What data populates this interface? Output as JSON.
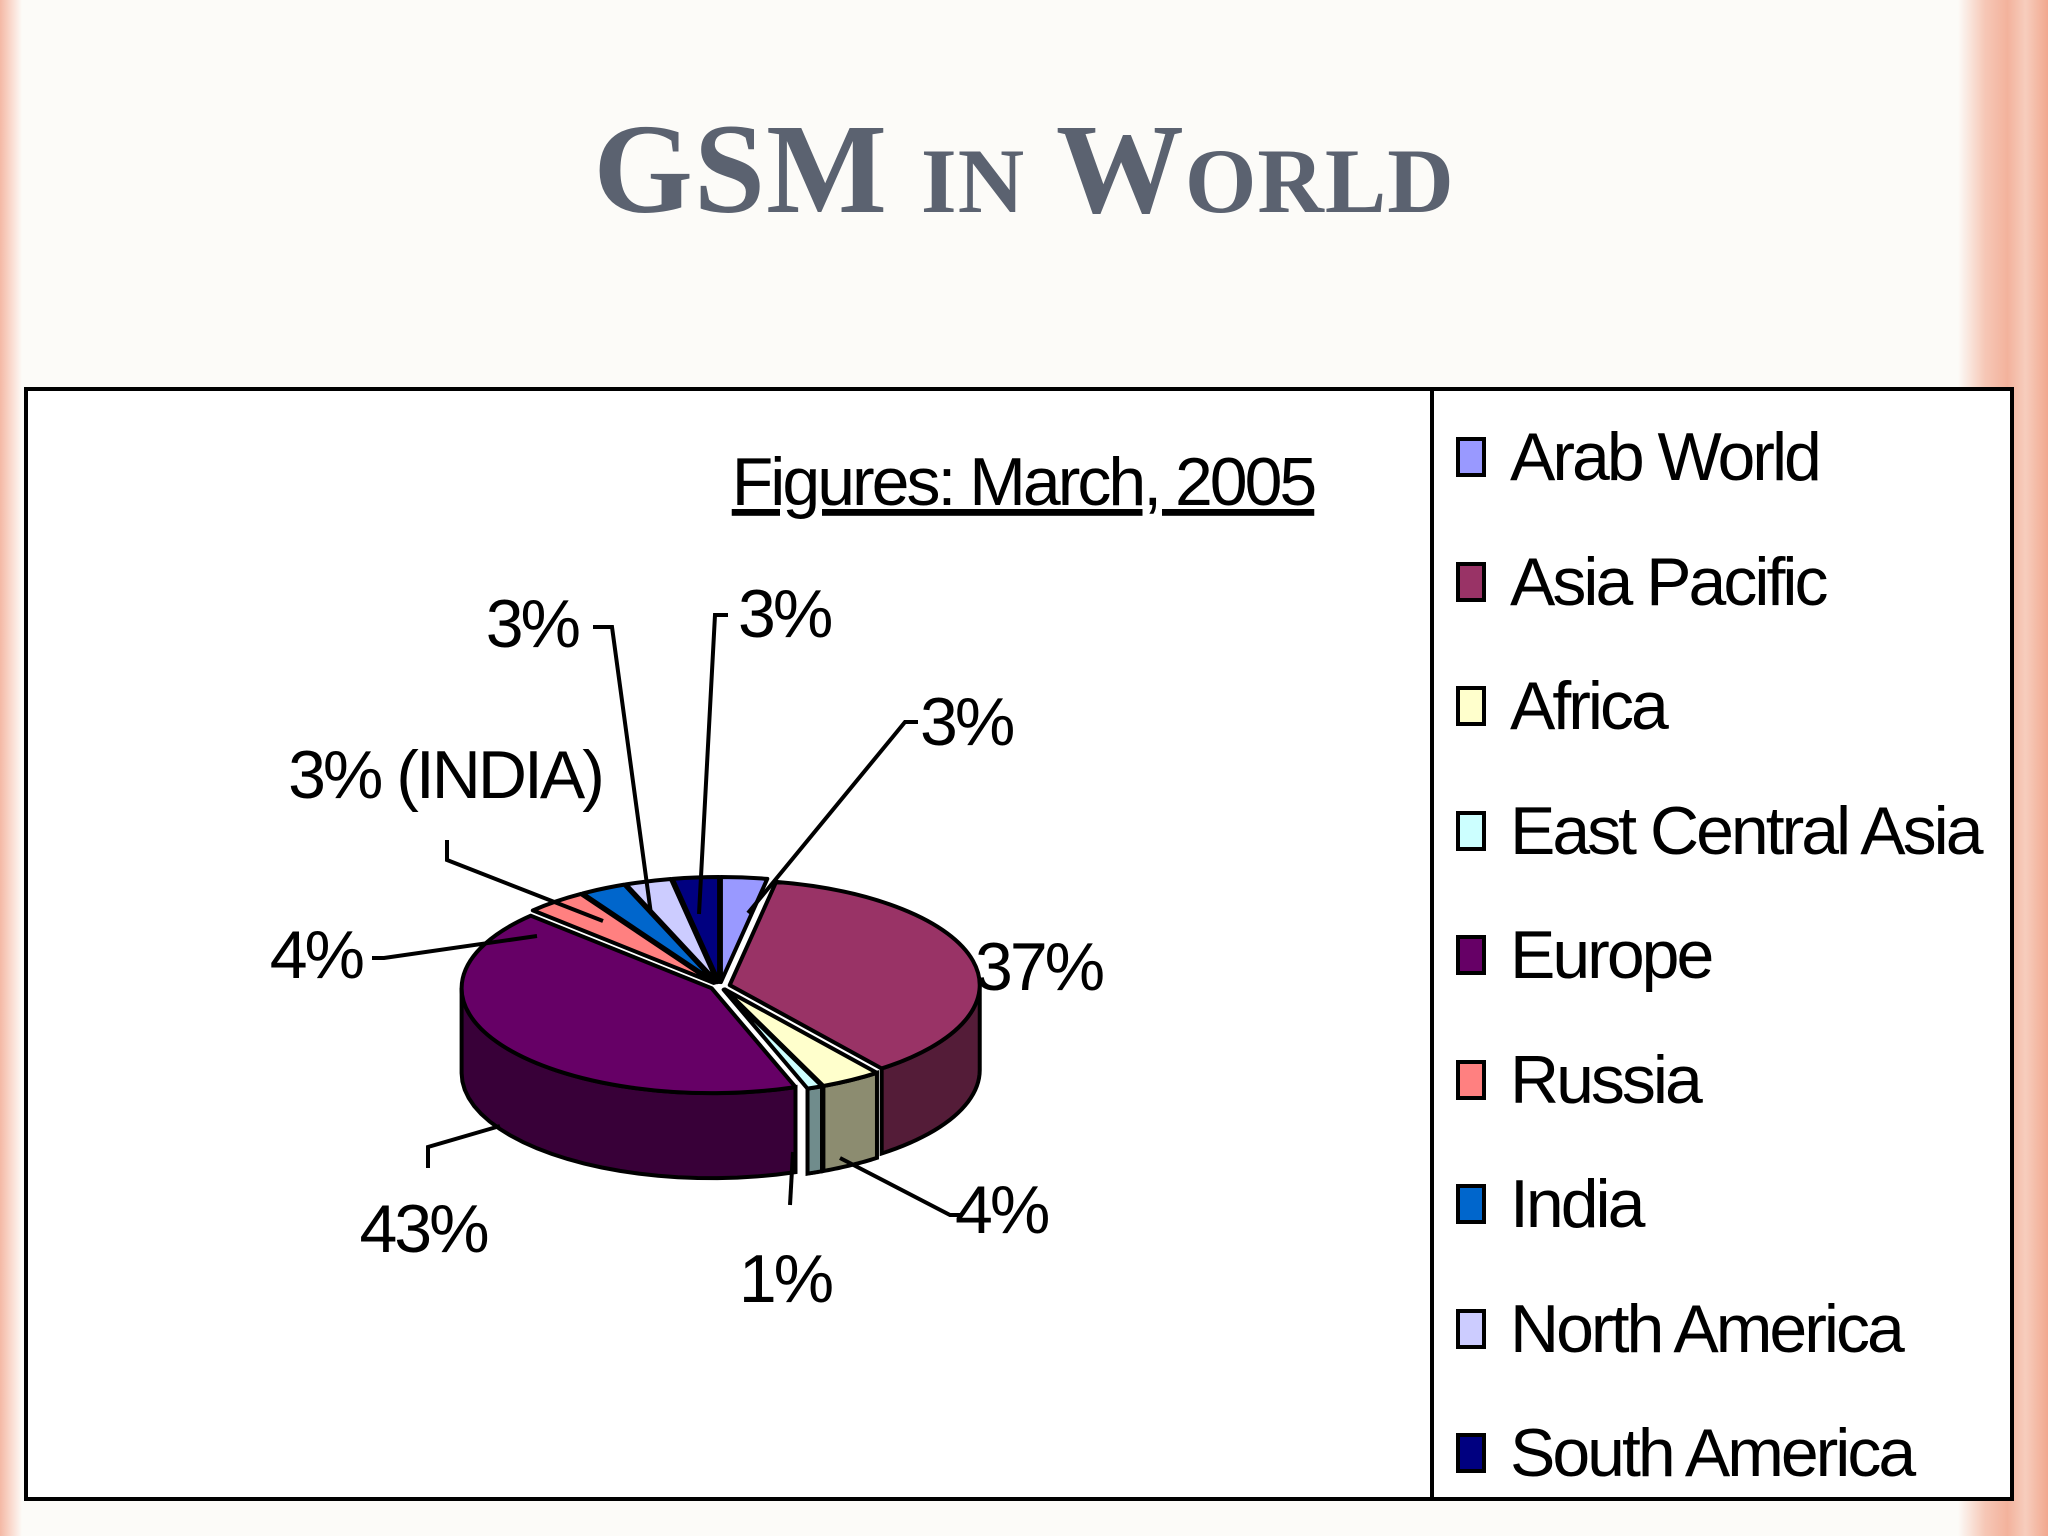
{
  "slide": {
    "title_parts": [
      "GSM ",
      "IN",
      " W",
      "ORLD"
    ]
  },
  "chart_data": {
    "type": "pie",
    "style": "3d-exploded-pie",
    "subtitle": "Figures: March, 2005",
    "legend_position": "right",
    "slices": [
      {
        "name": "Arab World",
        "value": 3,
        "label": "3%",
        "color": "#9999ff"
      },
      {
        "name": "Asia Pacific",
        "value": 37,
        "label": "37%",
        "color": "#993366"
      },
      {
        "name": "Africa",
        "value": 4,
        "label": "4%",
        "color": "#ffffcc"
      },
      {
        "name": "East Central Asia",
        "value": 1,
        "label": "1%",
        "color": "#ccffff"
      },
      {
        "name": "Europe",
        "value": 43,
        "label": "43%",
        "color": "#660066"
      },
      {
        "name": "Russia",
        "value": 4,
        "label": "4%",
        "color": "#ff8080"
      },
      {
        "name": "India",
        "value": 3,
        "label": "3% (INDIA)",
        "color": "#0066cc"
      },
      {
        "name": "North America",
        "value": 3,
        "label": "3%",
        "color": "#ccccff"
      },
      {
        "name": "South America",
        "value": 3,
        "label": "3%",
        "color": "#000080"
      }
    ]
  }
}
